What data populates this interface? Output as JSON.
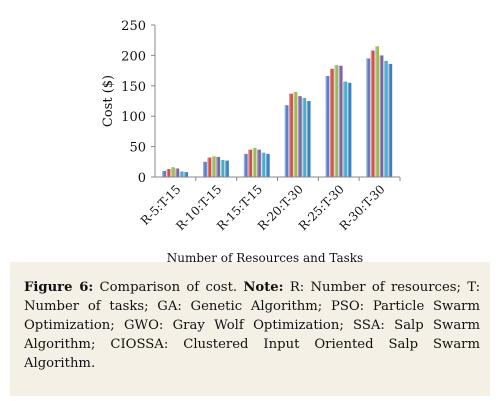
{
  "chart_data": {
    "type": "bar",
    "ylabel": "Cost ($)",
    "xlabel": "Number of Resources and Tasks",
    "ylim": [
      0,
      250
    ],
    "yticks": [
      0,
      50,
      100,
      150,
      200,
      250
    ],
    "grid": false,
    "categories": [
      "R-5:T-15",
      "R-10:T-15",
      "R-15:T-15",
      "R-20:T-30",
      "R-25:T-30",
      "R-30:T-30"
    ],
    "series": [
      {
        "values": [
          10,
          25,
          38,
          118,
          166,
          195
        ]
      },
      {
        "values": [
          13,
          32,
          45,
          137,
          178,
          208
        ]
      },
      {
        "values": [
          16,
          34,
          48,
          140,
          184,
          215
        ]
      },
      {
        "values": [
          14,
          33,
          45,
          133,
          183,
          200
        ]
      },
      {
        "values": [
          9,
          28,
          40,
          130,
          157,
          191
        ]
      },
      {
        "values": [
          8,
          27,
          38,
          125,
          155,
          186
        ]
      }
    ],
    "series_colors": [
      "#5a7fc8",
      "#d0504d",
      "#9bbb59",
      "#8064a2",
      "#4bacc6",
      "#3b7fc0"
    ]
  },
  "caption": {
    "label": "Figure 6:",
    "text1": " Comparison of cost. ",
    "note_label": "Note:",
    "text2": " R: Number of resources; T: Number of tasks; GA: Genetic Algorithm; PSO: Particle Swarm Optimization; GWO: Gray Wolf Optimization; SSA: Salp Swarm Algorithm; CIOSSA: Clustered Input Oriented Salp Swarm Algorithm."
  }
}
